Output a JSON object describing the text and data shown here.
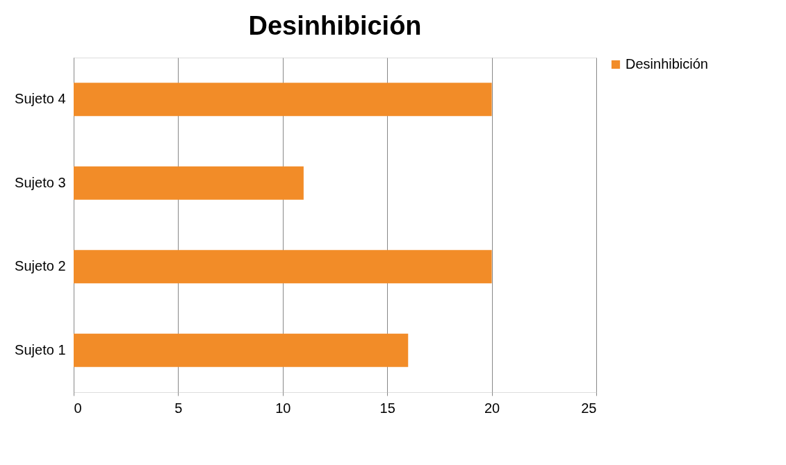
{
  "chart_data": {
    "type": "bar",
    "orientation": "horizontal",
    "title": "Desinhibición",
    "categories": [
      "Sujeto 4",
      "Sujeto 3",
      "Sujeto 2",
      "Sujeto 1"
    ],
    "series": [
      {
        "name": "Desinhibición",
        "color": "#f28c28",
        "values": [
          20,
          11,
          20,
          16
        ]
      }
    ],
    "xlim": [
      0,
      25
    ],
    "xticks": [
      0,
      5,
      10,
      15,
      20,
      25
    ],
    "grid": "x",
    "legend": "right"
  }
}
